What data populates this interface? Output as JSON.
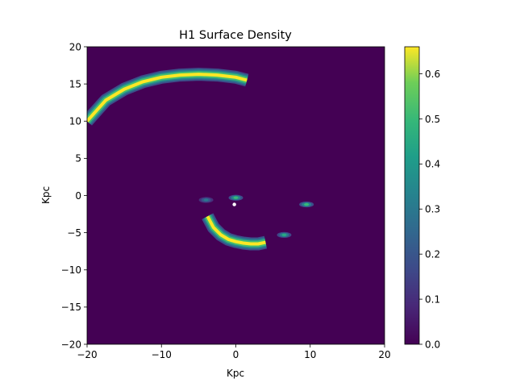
{
  "chart_data": {
    "type": "heatmap",
    "title": "H1 Surface Density",
    "xlabel": "Kpc",
    "ylabel": "Kpc",
    "xlim": [
      -20,
      20
    ],
    "ylim": [
      -20,
      20
    ],
    "x_ticks": [
      -20,
      -10,
      0,
      10,
      20
    ],
    "y_ticks": [
      -20,
      -15,
      -10,
      -5,
      0,
      5,
      10,
      15,
      20
    ],
    "x_tick_labels": [
      "−20",
      "−10",
      "0",
      "10",
      "20"
    ],
    "y_tick_labels": [
      "−20",
      "−15",
      "−10",
      "−5",
      "0",
      "5",
      "10",
      "15",
      "20"
    ],
    "colormap": "viridis",
    "background_value": 0.0,
    "colorbar": {
      "range": [
        0.0,
        0.66
      ],
      "ticks": [
        0.0,
        0.1,
        0.2,
        0.3,
        0.4,
        0.5,
        0.6
      ],
      "tick_labels": [
        "0.0",
        "0.1",
        "0.2",
        "0.3",
        "0.4",
        "0.5",
        "0.6"
      ]
    },
    "features": [
      {
        "shape": "arc",
        "peak_value": 0.66,
        "ridge": [
          [
            -20,
            10
          ],
          [
            -17.5,
            12.8
          ],
          [
            -15,
            14.3
          ],
          [
            -12.5,
            15.3
          ],
          [
            -10,
            15.9
          ],
          [
            -7.5,
            16.2
          ],
          [
            -5,
            16.3
          ],
          [
            -2.5,
            16.2
          ],
          [
            0,
            15.9
          ],
          [
            1.5,
            15.5
          ]
        ]
      },
      {
        "shape": "arc",
        "peak_value": 0.66,
        "ridge": [
          [
            -3.8,
            -2.8
          ],
          [
            -3,
            -4.3
          ],
          [
            -2,
            -5.3
          ],
          [
            -1,
            -5.9
          ],
          [
            0,
            -6.2
          ],
          [
            1,
            -6.4
          ],
          [
            2,
            -6.5
          ],
          [
            3,
            -6.5
          ],
          [
            4,
            -6.3
          ]
        ]
      },
      {
        "shape": "clump",
        "x": 0,
        "y": -0.3,
        "peak_value": 0.5
      },
      {
        "shape": "clump",
        "x": -4,
        "y": -0.6,
        "peak_value": 0.3
      },
      {
        "shape": "clump",
        "x": 9.5,
        "y": -1.2,
        "peak_value": 0.5
      },
      {
        "shape": "clump",
        "x": 6.5,
        "y": -5.3,
        "peak_value": 0.45
      }
    ],
    "marker": {
      "x": -0.2,
      "y": -1.2,
      "color": "#ffffff"
    }
  }
}
